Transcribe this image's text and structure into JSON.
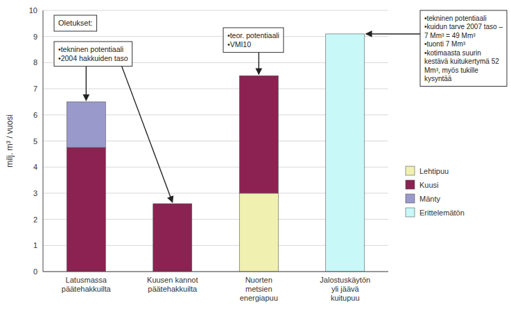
{
  "chart_data": {
    "type": "bar",
    "stacked": true,
    "categories": [
      "Latusmassa\npäätehakkuilta",
      "Kuusen kannot\npäätehakkuilta",
      "Nuorten\nmetsien\nenergiapuu",
      "Jalostuskäytön\nyli jäävä\nkuitupuu"
    ],
    "series": [
      {
        "name": "Lehtipuu",
        "color": "#f0f0b0",
        "values": [
          0,
          0,
          3.0,
          0
        ]
      },
      {
        "name": "Kuusi",
        "color": "#8B2252",
        "values": [
          4.75,
          2.6,
          4.5,
          0
        ]
      },
      {
        "name": "Mänty",
        "color": "#9999cc",
        "values": [
          1.75,
          0,
          0,
          0
        ]
      },
      {
        "name": "Erittelemätön",
        "color": "#c8f8f8",
        "values": [
          0,
          0,
          0,
          9.1
        ]
      }
    ],
    "y_label": "milj. m³ / vuosi",
    "ylim": [
      0,
      10
    ],
    "yticks": [
      0,
      1,
      2,
      3,
      4,
      5,
      6,
      7,
      8,
      9,
      10
    ],
    "grid": true,
    "legend": "right",
    "annotations": [
      "Oletukset:",
      "•tekninen potentiaali\n•2004 hakkuiden taso",
      "•teor. potentiaali\n•VMI10",
      "•tekninen potentiaali\n•kuidun tarve 2007 taso –\n7 Mm³ = 49 Mm³\n•tuonti 7 Mm³\n•kotimaasta suurin\nkestävä kuitukertymä 52\nMm³, myös tukille\nkysyntää"
    ]
  }
}
